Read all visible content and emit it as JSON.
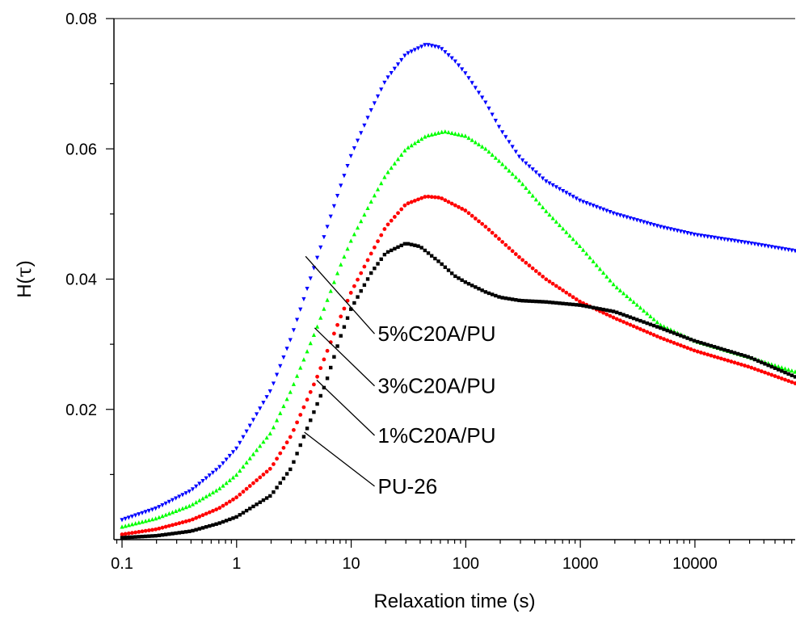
{
  "chart_data": {
    "type": "scatter",
    "xlabel": "Relaxation time (s)",
    "ylabel_main": "H(",
    "ylabel_symbol": "τ",
    "ylabel_close": ")",
    "xscale": "log",
    "xlim": [
      0.085,
      75000
    ],
    "ylim": [
      0.0,
      0.08
    ],
    "x_ticks": [
      {
        "value": 0.1,
        "label": "0.1"
      },
      {
        "value": 1,
        "label": "1"
      },
      {
        "value": 10,
        "label": "10"
      },
      {
        "value": 100,
        "label": "100"
      },
      {
        "value": 1000,
        "label": "1000"
      },
      {
        "value": 10000,
        "label": "10000"
      }
    ],
    "y_ticks": [
      {
        "value": 0.02,
        "label": "0.02"
      },
      {
        "value": 0.04,
        "label": "0.04"
      },
      {
        "value": 0.06,
        "label": "0.06"
      },
      {
        "value": 0.08,
        "label": "0.08"
      }
    ],
    "grid": false,
    "series": [
      {
        "name": "5%C20A/PU",
        "color": "#0000ff",
        "marker": "triangle-down",
        "points": [
          [
            0.1,
            0.003
          ],
          [
            0.2,
            0.0048
          ],
          [
            0.4,
            0.0075
          ],
          [
            0.7,
            0.011
          ],
          [
            1,
            0.014
          ],
          [
            2,
            0.023
          ],
          [
            3,
            0.031
          ],
          [
            5,
            0.043
          ],
          [
            8,
            0.054
          ],
          [
            10,
            0.059
          ],
          [
            15,
            0.066
          ],
          [
            20,
            0.0705
          ],
          [
            30,
            0.0745
          ],
          [
            45,
            0.076
          ],
          [
            60,
            0.0755
          ],
          [
            80,
            0.0735
          ],
          [
            100,
            0.0715
          ],
          [
            150,
            0.067
          ],
          [
            200,
            0.063
          ],
          [
            300,
            0.0585
          ],
          [
            500,
            0.055
          ],
          [
            1000,
            0.052
          ],
          [
            2000,
            0.05
          ],
          [
            5000,
            0.048
          ],
          [
            10000,
            0.0468
          ],
          [
            30000,
            0.0455
          ],
          [
            75000,
            0.0443
          ]
        ]
      },
      {
        "name": "3%C20A/PU",
        "color": "#00ff00",
        "marker": "triangle-up",
        "points": [
          [
            0.1,
            0.002
          ],
          [
            0.2,
            0.0033
          ],
          [
            0.4,
            0.0053
          ],
          [
            0.7,
            0.0078
          ],
          [
            1,
            0.01
          ],
          [
            2,
            0.0165
          ],
          [
            3,
            0.023
          ],
          [
            5,
            0.0325
          ],
          [
            8,
            0.042
          ],
          [
            10,
            0.046
          ],
          [
            15,
            0.052
          ],
          [
            20,
            0.056
          ],
          [
            30,
            0.06
          ],
          [
            45,
            0.062
          ],
          [
            65,
            0.0627
          ],
          [
            100,
            0.062
          ],
          [
            150,
            0.06
          ],
          [
            200,
            0.058
          ],
          [
            300,
            0.055
          ],
          [
            500,
            0.0505
          ],
          [
            1000,
            0.045
          ],
          [
            2000,
            0.039
          ],
          [
            5000,
            0.033
          ],
          [
            10000,
            0.0305
          ],
          [
            30000,
            0.028
          ],
          [
            75000,
            0.0258
          ]
        ]
      },
      {
        "name": "1%C20A/PU",
        "color": "#ff0000",
        "marker": "circle",
        "points": [
          [
            0.1,
            0.0008
          ],
          [
            0.2,
            0.0016
          ],
          [
            0.4,
            0.003
          ],
          [
            0.7,
            0.0048
          ],
          [
            1,
            0.0065
          ],
          [
            2,
            0.011
          ],
          [
            3,
            0.016
          ],
          [
            5,
            0.0248
          ],
          [
            8,
            0.034
          ],
          [
            10,
            0.038
          ],
          [
            15,
            0.044
          ],
          [
            20,
            0.048
          ],
          [
            30,
            0.0515
          ],
          [
            45,
            0.0527
          ],
          [
            60,
            0.0525
          ],
          [
            100,
            0.0505
          ],
          [
            150,
            0.048
          ],
          [
            200,
            0.046
          ],
          [
            300,
            0.0432
          ],
          [
            500,
            0.04
          ],
          [
            1000,
            0.0365
          ],
          [
            2000,
            0.034
          ],
          [
            5000,
            0.031
          ],
          [
            10000,
            0.029
          ],
          [
            30000,
            0.0265
          ],
          [
            75000,
            0.024
          ]
        ]
      },
      {
        "name": "PU-26",
        "color": "#000000",
        "marker": "square",
        "points": [
          [
            0.1,
            0.0003
          ],
          [
            0.2,
            0.0006
          ],
          [
            0.4,
            0.0013
          ],
          [
            0.7,
            0.0025
          ],
          [
            1,
            0.0035
          ],
          [
            2,
            0.0068
          ],
          [
            3,
            0.011
          ],
          [
            4,
            0.0165
          ],
          [
            6,
            0.024
          ],
          [
            8,
            0.031
          ],
          [
            10,
            0.0355
          ],
          [
            15,
            0.041
          ],
          [
            20,
            0.044
          ],
          [
            30,
            0.0455
          ],
          [
            40,
            0.045
          ],
          [
            60,
            0.0425
          ],
          [
            80,
            0.0405
          ],
          [
            100,
            0.0395
          ],
          [
            150,
            0.038
          ],
          [
            200,
            0.0372
          ],
          [
            300,
            0.0367
          ],
          [
            500,
            0.0365
          ],
          [
            1000,
            0.036
          ],
          [
            2000,
            0.035
          ],
          [
            5000,
            0.0325
          ],
          [
            10000,
            0.0305
          ],
          [
            30000,
            0.028
          ],
          [
            75000,
            0.025
          ]
        ]
      }
    ],
    "annotations": [
      {
        "text": "5%C20A/PU",
        "from": [
          4.0,
          0.0435
        ],
        "to": [
          16,
          0.0316
        ]
      },
      {
        "text": "3%C20A/PU",
        "from": [
          4.8,
          0.0325
        ],
        "to": [
          16,
          0.0236
        ]
      },
      {
        "text": "1%C20A/PU",
        "from": [
          5.0,
          0.0245
        ],
        "to": [
          16,
          0.016
        ]
      },
      {
        "text": "PU-26",
        "from": [
          3.9,
          0.0165
        ],
        "to": [
          16,
          0.0082
        ]
      }
    ]
  }
}
